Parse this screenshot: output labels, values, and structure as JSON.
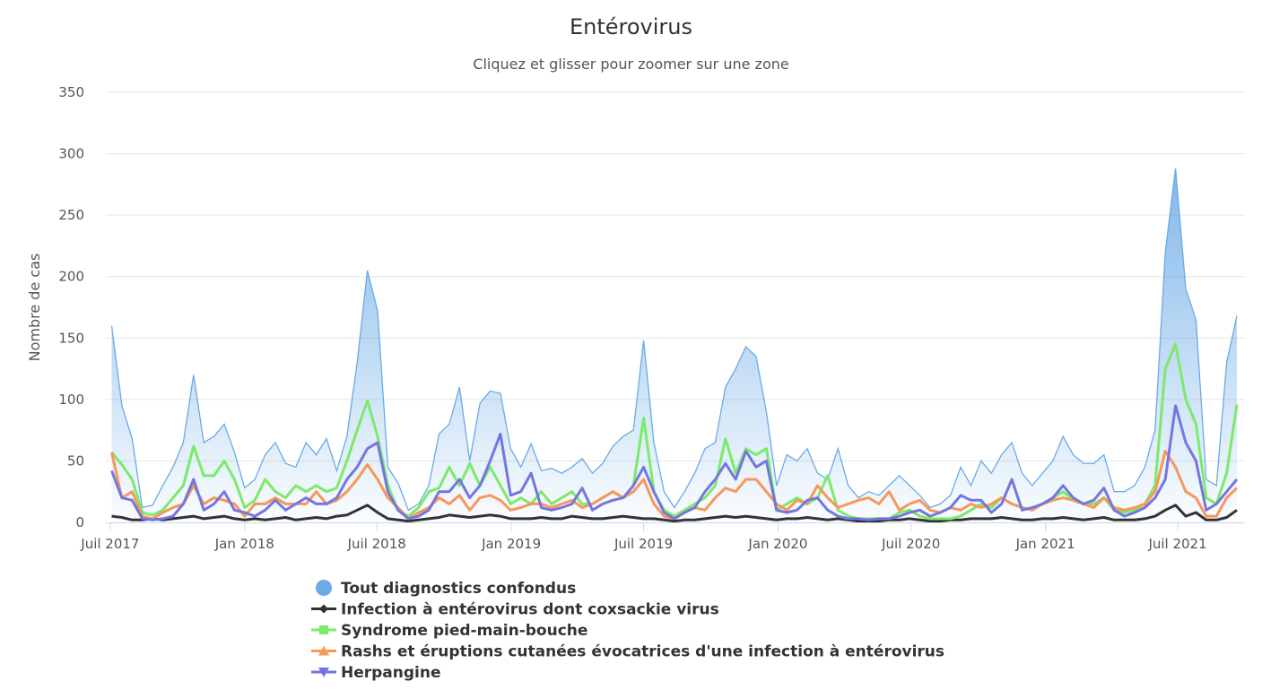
{
  "chart_data": {
    "type": "line",
    "title": "Entérovirus",
    "subtitle": "Cliquez et glisser pour zoomer sur une zone",
    "ylabel": "Nombre de cas",
    "xlabel": "",
    "ylim": [
      0,
      350
    ],
    "yticks": [
      0,
      50,
      100,
      150,
      200,
      250,
      300,
      350
    ],
    "xticks": [
      {
        "date": "2017-07-01",
        "label": "Juil 2017"
      },
      {
        "date": "2018-01-01",
        "label": "Jan 2018"
      },
      {
        "date": "2018-07-01",
        "label": "Juil 2018"
      },
      {
        "date": "2019-01-01",
        "label": "Jan 2019"
      },
      {
        "date": "2019-07-01",
        "label": "Juil 2019"
      },
      {
        "date": "2020-01-01",
        "label": "Jan 2020"
      },
      {
        "date": "2020-07-01",
        "label": "Juil 2020"
      },
      {
        "date": "2021-01-01",
        "label": "Jan 2021"
      },
      {
        "date": "2021-07-01",
        "label": "Juil 2021"
      }
    ],
    "xlim": [
      "2017-06-25",
      "2021-10-01"
    ],
    "grid": true,
    "legend_placement": "bottom",
    "first_date": "2017-07-03",
    "series": [
      {
        "name": "Tout diagnostics confondus",
        "color": "#6aaae6",
        "marker": "circle",
        "area": true,
        "values": [
          160,
          95,
          68,
          12,
          14,
          30,
          45,
          65,
          120,
          65,
          70,
          80,
          57,
          28,
          35,
          55,
          65,
          48,
          45,
          65,
          55,
          68,
          42,
          70,
          130,
          205,
          172,
          45,
          32,
          10,
          15,
          30,
          72,
          80,
          110,
          50,
          97,
          107,
          105,
          60,
          45,
          64,
          42,
          44,
          40,
          45,
          52,
          40,
          48,
          62,
          70,
          75,
          148,
          65,
          25,
          12,
          25,
          40,
          60,
          65,
          110,
          125,
          143,
          135,
          90,
          30,
          55,
          50,
          60,
          40,
          35,
          60,
          30,
          20,
          25,
          22,
          30,
          38,
          30,
          22,
          12,
          15,
          22,
          45,
          30,
          50,
          40,
          55,
          65,
          40,
          30,
          40,
          50,
          70,
          55,
          48,
          48,
          55,
          25,
          25,
          30,
          45,
          75,
          220,
          288,
          190,
          165,
          35,
          30,
          130,
          168
        ]
      },
      {
        "name": "Infection à entérovirus dont coxsackie virus",
        "color": "#333333",
        "marker": "diamond",
        "values": [
          5,
          4,
          2,
          2,
          3,
          2,
          3,
          4,
          5,
          3,
          4,
          5,
          3,
          2,
          3,
          2,
          3,
          4,
          2,
          3,
          4,
          3,
          5,
          6,
          10,
          14,
          8,
          3,
          2,
          1,
          2,
          3,
          4,
          6,
          5,
          4,
          5,
          6,
          5,
          3,
          3,
          3,
          4,
          3,
          3,
          5,
          4,
          3,
          3,
          4,
          5,
          4,
          3,
          3,
          2,
          1,
          2,
          2,
          3,
          4,
          5,
          4,
          5,
          4,
          3,
          2,
          3,
          3,
          4,
          3,
          2,
          3,
          2,
          1,
          1,
          1,
          2,
          2,
          3,
          2,
          1,
          1,
          2,
          2,
          3,
          3,
          3,
          4,
          3,
          2,
          2,
          3,
          3,
          4,
          3,
          2,
          3,
          4,
          2,
          2,
          2,
          3,
          5,
          10,
          14,
          5,
          8,
          2,
          2,
          4,
          10
        ]
      },
      {
        "name": "Syndrome pied-main-bouche",
        "color": "#7cea6a",
        "marker": "square",
        "values": [
          57,
          47,
          35,
          8,
          6,
          10,
          20,
          30,
          62,
          38,
          38,
          50,
          35,
          12,
          18,
          35,
          25,
          20,
          30,
          25,
          30,
          25,
          28,
          50,
          75,
          99,
          70,
          30,
          10,
          5,
          12,
          25,
          28,
          45,
          30,
          48,
          30,
          45,
          30,
          15,
          20,
          15,
          25,
          15,
          20,
          25,
          15,
          15,
          20,
          25,
          20,
          30,
          85,
          25,
          10,
          5,
          10,
          15,
          20,
          30,
          68,
          40,
          60,
          55,
          60,
          10,
          15,
          20,
          15,
          20,
          38,
          10,
          5,
          3,
          3,
          3,
          3,
          8,
          10,
          5,
          3,
          3,
          3,
          5,
          10,
          15,
          12,
          20,
          15,
          12,
          10,
          15,
          20,
          25,
          18,
          15,
          15,
          20,
          10,
          8,
          10,
          15,
          30,
          125,
          145,
          100,
          80,
          20,
          15,
          40,
          96
        ]
      },
      {
        "name": "Rashs et éruptions cutanées évocatrices d'une infection à entérovirus",
        "color": "#f7975a",
        "marker": "triangle",
        "values": [
          57,
          20,
          25,
          5,
          3,
          8,
          12,
          15,
          30,
          15,
          20,
          18,
          15,
          5,
          15,
          15,
          20,
          15,
          15,
          15,
          25,
          15,
          18,
          25,
          35,
          47,
          35,
          20,
          12,
          3,
          8,
          12,
          20,
          15,
          22,
          10,
          20,
          22,
          18,
          10,
          12,
          15,
          15,
          12,
          15,
          18,
          12,
          15,
          20,
          25,
          20,
          25,
          35,
          15,
          5,
          3,
          8,
          12,
          10,
          20,
          28,
          25,
          35,
          35,
          25,
          15,
          10,
          18,
          15,
          30,
          20,
          12,
          15,
          18,
          20,
          15,
          25,
          10,
          15,
          18,
          10,
          8,
          12,
          10,
          15,
          12,
          15,
          20,
          15,
          12,
          10,
          15,
          18,
          20,
          18,
          15,
          12,
          20,
          12,
          10,
          12,
          15,
          25,
          58,
          45,
          25,
          20,
          5,
          5,
          20,
          28
        ]
      },
      {
        "name": "Herpangine",
        "color": "#7476e0",
        "marker": "triangle-down",
        "values": [
          42,
          20,
          18,
          3,
          2,
          3,
          5,
          15,
          35,
          10,
          15,
          25,
          10,
          8,
          5,
          10,
          18,
          10,
          15,
          20,
          15,
          15,
          20,
          35,
          45,
          60,
          65,
          25,
          10,
          3,
          5,
          10,
          25,
          25,
          35,
          20,
          30,
          50,
          72,
          22,
          25,
          40,
          12,
          10,
          12,
          15,
          28,
          10,
          15,
          18,
          20,
          30,
          45,
          25,
          8,
          3,
          8,
          12,
          25,
          35,
          48,
          35,
          58,
          45,
          50,
          10,
          8,
          10,
          18,
          20,
          10,
          5,
          3,
          3,
          2,
          3,
          3,
          5,
          8,
          10,
          5,
          8,
          12,
          22,
          18,
          18,
          8,
          15,
          35,
          10,
          12,
          15,
          20,
          30,
          20,
          15,
          18,
          28,
          10,
          5,
          8,
          12,
          20,
          35,
          95,
          65,
          50,
          10,
          15,
          25,
          35
        ]
      }
    ]
  }
}
